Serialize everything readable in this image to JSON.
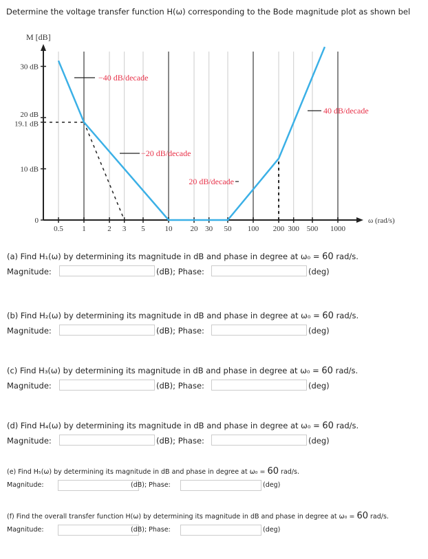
{
  "intro": "Determine the voltage transfer function H(ω) corresponding to the Bode magnitude plot as shown bel",
  "chart_data": {
    "type": "line",
    "ylabel": "M [dB]",
    "xlabel": "ω (rad/s)",
    "xscale": "log",
    "x_ticks": [
      "0.5",
      "1",
      "2",
      "3",
      "5",
      "10",
      "20",
      "30",
      "50",
      "100",
      "200",
      "300",
      "500",
      "1000"
    ],
    "y_ticks": [
      "0",
      "10 dB",
      "19.1 dB",
      "20 dB",
      "30 dB"
    ],
    "series": [
      {
        "x": [
          0.5,
          1,
          10,
          50,
          200,
          700
        ],
        "y": [
          31.1,
          19.1,
          0,
          0,
          12,
          33.8
        ]
      }
    ],
    "dashed": [
      {
        "x": [
          0.5,
          1
        ],
        "y": [
          19.1,
          19.1
        ]
      },
      {
        "x": [
          1,
          3
        ],
        "y": [
          19.1,
          0
        ]
      },
      {
        "x": [
          200,
          200
        ],
        "y": [
          0,
          12
        ]
      }
    ],
    "annotations": [
      "−40 dB/decade",
      "−20 dB/decade",
      "20 dB/decade",
      "40 dB/decade"
    ],
    "grid": true,
    "line_color": "#3bb0e6",
    "annotation_color": "#e8334a"
  },
  "questions": [
    {
      "text": "(a) Find H₁(ω) by determining its magnitude in dB and phase in degree at ω₀ = ",
      "w": "60",
      "unit": " rad/s."
    },
    {
      "text": "(b) Find H₂(ω) by determining its magnitude in dB and phase in degree at ω₀ = ",
      "w": "60",
      "unit": " rad/s."
    },
    {
      "text": "(c) Find H₃(ω) by determining its magnitude in dB and phase in degree at ω₀ = ",
      "w": "60",
      "unit": " rad/s."
    },
    {
      "text": "(d) Find H₄(ω) by determining its magnitude in dB and phase in degree at ω₀ = ",
      "w": "60",
      "unit": " rad/s."
    },
    {
      "text": "(e) Find H₅(ω) by determining its magnitude in dB and phase in degree at ω₀ = ",
      "w": "60",
      "unit": " rad/s."
    },
    {
      "text": "(f) Find the overall transfer function H(ω) by determining its magnitude in dB and phase in degree at ω₀ = ",
      "w": "60",
      "unit": " rad/s."
    }
  ],
  "labels": {
    "magnitude": "Magnitude:",
    "db_phase": "(dB); Phase:",
    "deg": "(deg)"
  }
}
